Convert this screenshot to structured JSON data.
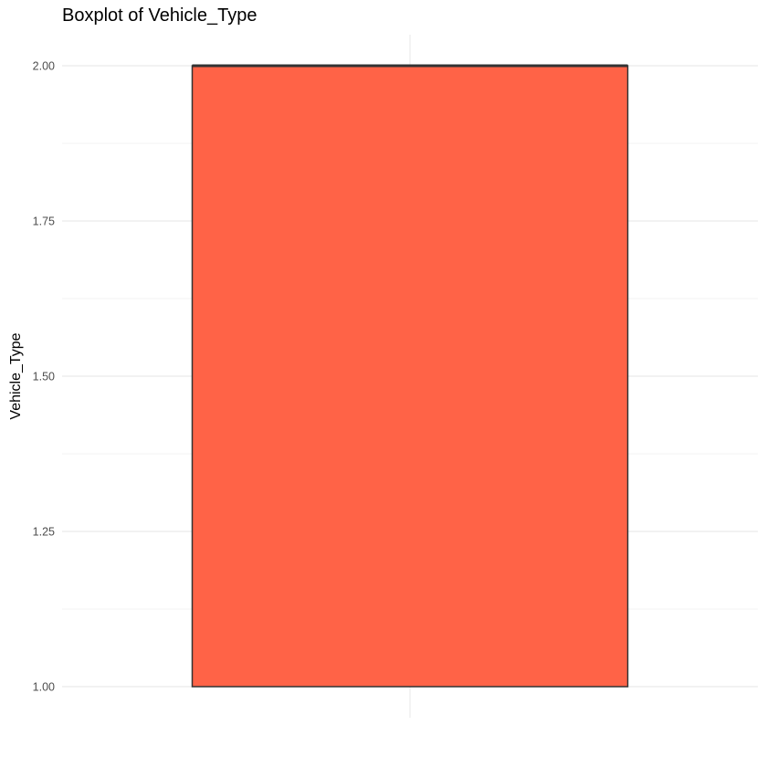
{
  "chart_data": {
    "type": "boxplot",
    "title": "Boxplot of Vehicle_Type",
    "xlabel": "",
    "ylabel": "Vehicle_Type",
    "ylim": [
      0.95,
      2.05
    ],
    "y_ticks": [
      "1.00",
      "1.25",
      "1.50",
      "1.75",
      "2.00"
    ],
    "grid": true,
    "box": {
      "min": 1.0,
      "q1": 1.0,
      "median": 2.0,
      "q3": 2.0,
      "max": 2.0
    },
    "colors": {
      "box_fill": "#FF6347",
      "box_stroke": "#333333",
      "grid_major": "#ebebeb",
      "grid_minor": "#f3f3f3"
    }
  }
}
